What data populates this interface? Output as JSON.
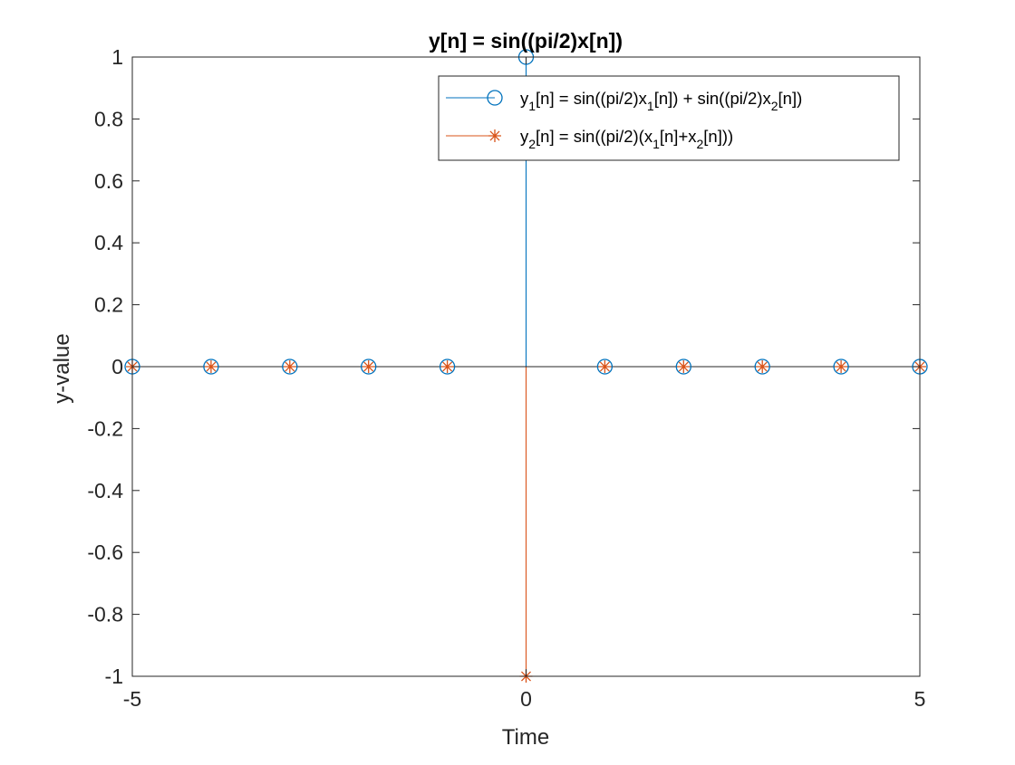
{
  "chart_data": {
    "type": "stem",
    "title": "y[n] = sin((pi/2)x[n])",
    "xlabel": "Time",
    "ylabel": "y-value",
    "xlim": [
      -5,
      5
    ],
    "ylim": [
      -1,
      1
    ],
    "xticks": [
      -5,
      0,
      5
    ],
    "xtick_labels": [
      "-5",
      "0",
      "5"
    ],
    "yticks": [
      -1,
      -0.8,
      -0.6,
      -0.4,
      -0.2,
      0,
      0.2,
      0.4,
      0.6,
      0.8,
      1
    ],
    "ytick_labels": [
      "-1",
      "-0.8",
      "-0.6",
      "-0.4",
      "-0.2",
      "0",
      "0.2",
      "0.4",
      "0.6",
      "0.8",
      "1"
    ],
    "grid": false,
    "legend_position": "top-right",
    "series": [
      {
        "name": "y1[n] = sin((pi/2)x1[n]) + sin((pi/2)x2[n])",
        "legend_parts": [
          {
            "t": "y"
          },
          {
            "t": "1",
            "sub": true
          },
          {
            "t": "[n] = sin((pi/2)x"
          },
          {
            "t": "1",
            "sub": true
          },
          {
            "t": "[n]) + sin((pi/2)x"
          },
          {
            "t": "2",
            "sub": true
          },
          {
            "t": "[n])"
          }
        ],
        "marker": "circle",
        "color": "#0072BD",
        "x": [
          -5,
          -4,
          -3,
          -2,
          -1,
          0,
          1,
          2,
          3,
          4,
          5
        ],
        "y": [
          0,
          0,
          0,
          0,
          0,
          1,
          0,
          0,
          0,
          0,
          0
        ]
      },
      {
        "name": "y2[n] = sin((pi/2)(x1[n]+x2[n]))",
        "legend_parts": [
          {
            "t": "y"
          },
          {
            "t": "2",
            "sub": true
          },
          {
            "t": "[n] = sin((pi/2)(x"
          },
          {
            "t": "1",
            "sub": true
          },
          {
            "t": "[n]+x"
          },
          {
            "t": "2",
            "sub": true
          },
          {
            "t": "[n]))"
          }
        ],
        "marker": "asterisk",
        "color": "#D95319",
        "x": [
          -5,
          -4,
          -3,
          -2,
          -1,
          0,
          1,
          2,
          3,
          4,
          5
        ],
        "y": [
          0,
          0,
          0,
          0,
          0,
          -1,
          0,
          0,
          0,
          0,
          0
        ]
      }
    ]
  }
}
